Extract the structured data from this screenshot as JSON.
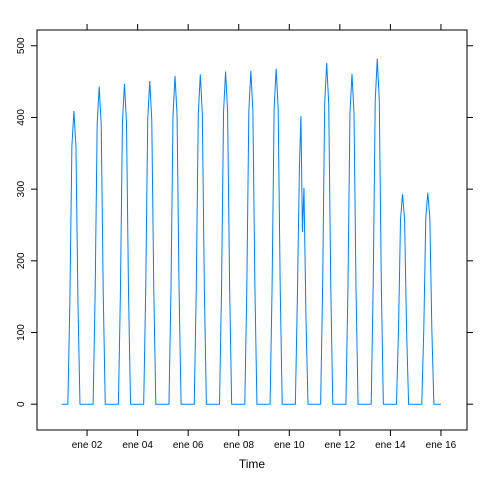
{
  "chart_data": {
    "type": "line",
    "x_label": "Time",
    "x": [
      1.0,
      1.24,
      1.32,
      1.4,
      1.48,
      1.56,
      1.64,
      1.72,
      2.24,
      2.32,
      2.4,
      2.48,
      2.56,
      2.64,
      2.72,
      3.24,
      3.32,
      3.4,
      3.48,
      3.56,
      3.64,
      3.72,
      4.24,
      4.32,
      4.4,
      4.48,
      4.56,
      4.64,
      4.72,
      5.24,
      5.32,
      5.4,
      5.48,
      5.56,
      5.64,
      5.72,
      6.24,
      6.32,
      6.4,
      6.48,
      6.56,
      6.64,
      6.72,
      7.24,
      7.32,
      7.4,
      7.48,
      7.56,
      7.64,
      7.72,
      8.24,
      8.32,
      8.4,
      8.48,
      8.56,
      8.64,
      8.72,
      9.24,
      9.32,
      9.4,
      9.48,
      9.56,
      9.64,
      9.72,
      10.24,
      10.32,
      10.4,
      10.46,
      10.52,
      10.58,
      10.66,
      10.74,
      11.24,
      11.32,
      11.4,
      11.48,
      11.56,
      11.64,
      11.72,
      12.24,
      12.32,
      12.4,
      12.48,
      12.56,
      12.64,
      12.72,
      13.24,
      13.32,
      13.4,
      13.48,
      13.56,
      13.64,
      13.72,
      14.24,
      14.32,
      14.4,
      14.48,
      14.56,
      14.64,
      14.72,
      15.24,
      15.32,
      15.4,
      15.48,
      15.56,
      15.64,
      15.72,
      16.0
    ],
    "series": [
      {
        "color": "#0080ff",
        "values": [
          0,
          0,
          143,
          360,
          409,
          360,
          143,
          0,
          0,
          155,
          390,
          443,
          390,
          155,
          0,
          0,
          156,
          393,
          447,
          393,
          156,
          0,
          0,
          158,
          397,
          451,
          397,
          158,
          0,
          0,
          160,
          403,
          458,
          403,
          160,
          0,
          0,
          161,
          405,
          460,
          405,
          161,
          0,
          0,
          162,
          408,
          464,
          408,
          162,
          0,
          0,
          163,
          409,
          465,
          409,
          163,
          0,
          0,
          164,
          412,
          468,
          412,
          164,
          0,
          0,
          150,
          330,
          402,
          240,
          302,
          120,
          0,
          0,
          167,
          419,
          476,
          419,
          167,
          0,
          0,
          161,
          406,
          461,
          406,
          161,
          0,
          0,
          169,
          424,
          482,
          424,
          169,
          0,
          0,
          103,
          258,
          293,
          258,
          103,
          0,
          0,
          103,
          260,
          295,
          260,
          103,
          0,
          0
        ]
      }
    ],
    "xlim": [
      0.02,
      17.03
    ],
    "xticks": [
      {
        "value": 2,
        "label": "ene 02"
      },
      {
        "value": 4,
        "label": "ene 04"
      },
      {
        "value": 6,
        "label": "ene 06"
      },
      {
        "value": 8,
        "label": "ene 08"
      },
      {
        "value": 10,
        "label": "ene 10"
      },
      {
        "value": 12,
        "label": "ene 12"
      },
      {
        "value": 14,
        "label": "ene 14"
      },
      {
        "value": 16,
        "label": "ene 16"
      }
    ],
    "ylim": [
      -36,
      522
    ],
    "yticks": [
      0,
      100,
      200,
      300,
      400,
      500
    ]
  }
}
